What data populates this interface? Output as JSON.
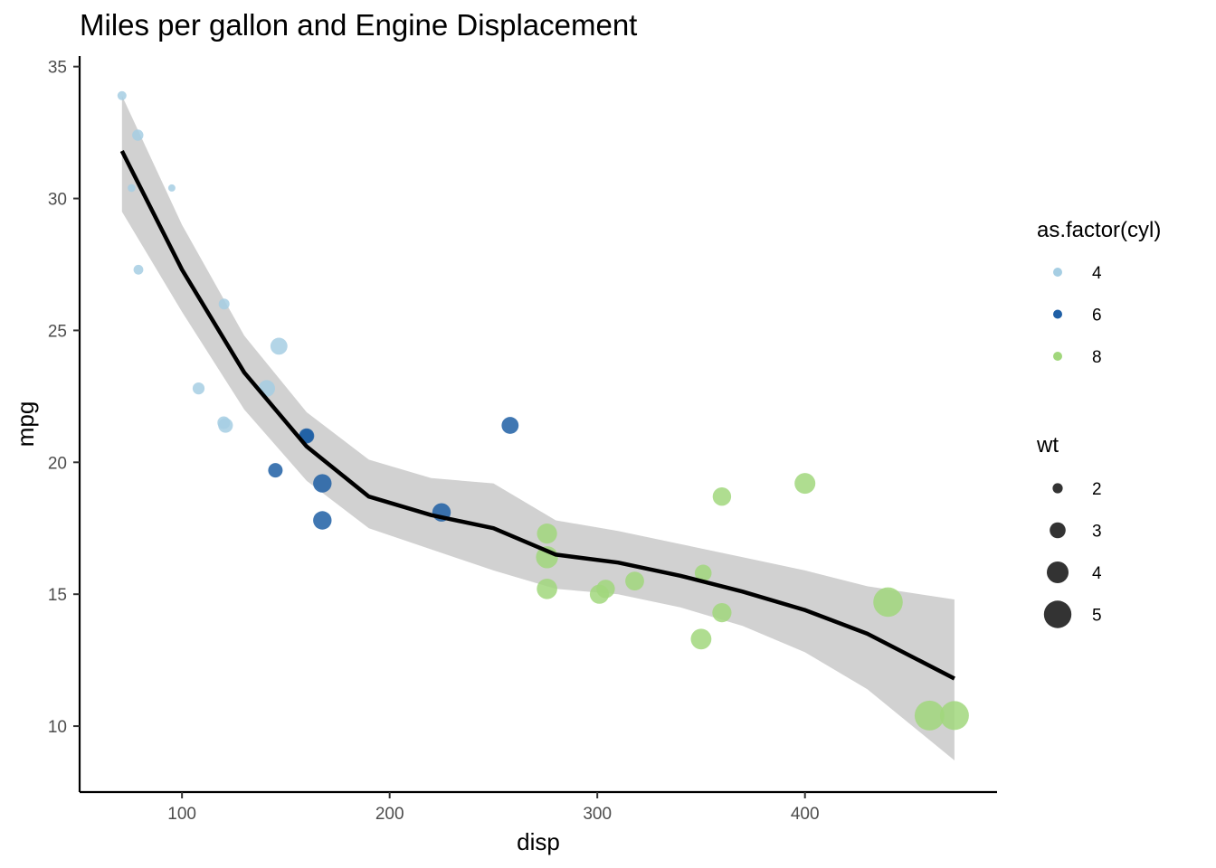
{
  "chart_data": {
    "type": "scatter",
    "title": "Miles per gallon and Engine Displacement",
    "xlabel": "disp",
    "ylabel": "mpg",
    "xlim": [
      50.7,
      492.5
    ],
    "ylim": [
      7.5,
      35.4
    ],
    "xticks": [
      100,
      200,
      300,
      400
    ],
    "yticks": [
      10,
      15,
      20,
      25,
      30,
      35
    ],
    "grid": false,
    "legend_placement": "right",
    "colors": {
      "4": "#a6cee3",
      "6": "#1f5fa5",
      "8": "#a1d77c",
      "smooth_line": "#000000",
      "ribbon": "#cccccc"
    },
    "color_legend": {
      "title": "as.factor(cyl)",
      "items": [
        "4",
        "6",
        "8"
      ]
    },
    "size_legend": {
      "title": "wt",
      "items": [
        2,
        3,
        4,
        5
      ]
    },
    "points": [
      {
        "x": 160,
        "y": 21.0,
        "cyl": "6",
        "wt": 2.62
      },
      {
        "x": 160,
        "y": 21.0,
        "cyl": "6",
        "wt": 2.875
      },
      {
        "x": 108,
        "y": 22.8,
        "cyl": "4",
        "wt": 2.32
      },
      {
        "x": 258,
        "y": 21.4,
        "cyl": "6",
        "wt": 3.215
      },
      {
        "x": 360,
        "y": 18.7,
        "cyl": "8",
        "wt": 3.44
      },
      {
        "x": 225,
        "y": 18.1,
        "cyl": "6",
        "wt": 3.46
      },
      {
        "x": 360,
        "y": 14.3,
        "cyl": "8",
        "wt": 3.57
      },
      {
        "x": 146.7,
        "y": 24.4,
        "cyl": "4",
        "wt": 3.19
      },
      {
        "x": 140.8,
        "y": 22.8,
        "cyl": "4",
        "wt": 3.15
      },
      {
        "x": 167.6,
        "y": 19.2,
        "cyl": "6",
        "wt": 3.44
      },
      {
        "x": 167.6,
        "y": 17.8,
        "cyl": "6",
        "wt": 3.44
      },
      {
        "x": 275.8,
        "y": 16.4,
        "cyl": "8",
        "wt": 4.07
      },
      {
        "x": 275.8,
        "y": 17.3,
        "cyl": "8",
        "wt": 3.73
      },
      {
        "x": 275.8,
        "y": 15.2,
        "cyl": "8",
        "wt": 3.78
      },
      {
        "x": 472,
        "y": 10.4,
        "cyl": "8",
        "wt": 5.25
      },
      {
        "x": 460,
        "y": 10.4,
        "cyl": "8",
        "wt": 5.424
      },
      {
        "x": 440,
        "y": 14.7,
        "cyl": "8",
        "wt": 5.345
      },
      {
        "x": 78.7,
        "y": 32.4,
        "cyl": "4",
        "wt": 2.2
      },
      {
        "x": 75.7,
        "y": 30.4,
        "cyl": "4",
        "wt": 1.615
      },
      {
        "x": 71.1,
        "y": 33.9,
        "cyl": "4",
        "wt": 1.835
      },
      {
        "x": 120.1,
        "y": 21.5,
        "cyl": "4",
        "wt": 2.465
      },
      {
        "x": 318,
        "y": 15.5,
        "cyl": "8",
        "wt": 3.52
      },
      {
        "x": 304,
        "y": 15.2,
        "cyl": "8",
        "wt": 3.435
      },
      {
        "x": 350,
        "y": 13.3,
        "cyl": "8",
        "wt": 3.84
      },
      {
        "x": 400,
        "y": 19.2,
        "cyl": "8",
        "wt": 3.845
      },
      {
        "x": 79,
        "y": 27.3,
        "cyl": "4",
        "wt": 1.935
      },
      {
        "x": 120.3,
        "y": 26.0,
        "cyl": "4",
        "wt": 2.14
      },
      {
        "x": 95.1,
        "y": 30.4,
        "cyl": "4",
        "wt": 1.513
      },
      {
        "x": 351,
        "y": 15.8,
        "cyl": "8",
        "wt": 3.17
      },
      {
        "x": 145,
        "y": 19.7,
        "cyl": "6",
        "wt": 2.77
      },
      {
        "x": 301,
        "y": 15.0,
        "cyl": "8",
        "wt": 3.57
      },
      {
        "x": 121,
        "y": 21.4,
        "cyl": "4",
        "wt": 2.78
      }
    ],
    "smooth": {
      "x": [
        71.1,
        100,
        130,
        160,
        190,
        220,
        250,
        280,
        310,
        340,
        370,
        400,
        430,
        472
      ],
      "y": [
        31.8,
        27.3,
        23.4,
        20.6,
        18.7,
        18.0,
        17.5,
        16.5,
        16.2,
        15.7,
        15.1,
        14.4,
        13.5,
        11.8
      ],
      "upper": [
        33.9,
        29.0,
        24.8,
        21.9,
        20.1,
        19.4,
        19.2,
        17.8,
        17.4,
        16.9,
        16.4,
        15.9,
        15.3,
        14.8
      ],
      "lower": [
        29.5,
        25.7,
        22.0,
        19.3,
        17.5,
        16.7,
        15.9,
        15.2,
        15.0,
        14.5,
        13.8,
        12.8,
        11.4,
        8.7
      ]
    }
  }
}
